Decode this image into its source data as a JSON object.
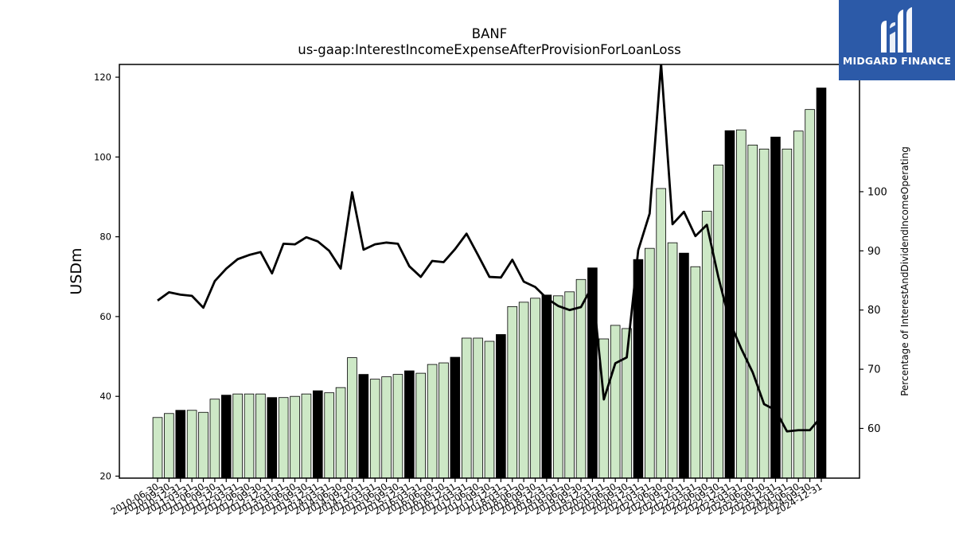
{
  "header": {
    "title": "BANF",
    "subtitle": "us-gaap:InterestIncomeExpenseAfterProvisionForLoanLoss"
  },
  "logo": {
    "text": "MIDGARD FINANCE",
    "color": "#2c5aa8"
  },
  "chart_data": {
    "type": "bar",
    "title": "BANF",
    "subtitle": "us-gaap:InterestIncomeExpenseAfterProvisionForLoanLoss",
    "ylabel": "USDm",
    "y2label": "Percentage of InterestAndDividendIncomeOperating",
    "ylim": [
      19.5,
      123.2
    ],
    "y2lim": [
      51.6,
      121.5
    ],
    "yticks": [
      20,
      40,
      60,
      80,
      100,
      120
    ],
    "y2ticks": [
      60,
      70,
      80,
      90,
      100
    ],
    "grid": false,
    "colors": {
      "bar_light": "#cde8c6",
      "bar_dark": "#000000",
      "bar_edge": "#000000",
      "line": "#000000"
    },
    "categories": [
      "2010-06-30",
      "2010-09-30",
      "2010-12-31",
      "2011-03-31",
      "2011-06-30",
      "2011-09-30",
      "2011-12-31",
      "2012-03-31",
      "2012-06-30",
      "2012-09-30",
      "2012-12-31",
      "2013-03-31",
      "2013-06-30",
      "2013-09-30",
      "2013-12-31",
      "2014-03-31",
      "2014-06-30",
      "2014-09-30",
      "2014-12-31",
      "2015-03-31",
      "2015-06-30",
      "2015-09-30",
      "2015-12-31",
      "2016-03-31",
      "2016-06-30",
      "2016-09-30",
      "2016-12-31",
      "2017-03-31",
      "2017-06-30",
      "2017-09-30",
      "2017-12-31",
      "2018-03-31",
      "2018-06-30",
      "2018-09-30",
      "2018-12-31",
      "2019-03-31",
      "2019-06-30",
      "2019-09-30",
      "2019-12-31",
      "2020-03-31",
      "2020-06-30",
      "2020-09-30",
      "2020-12-31",
      "2021-03-31",
      "2021-06-30",
      "2021-09-30",
      "2021-12-31",
      "2022-03-31",
      "2022-06-30",
      "2022-09-30",
      "2022-12-31",
      "2023-03-31",
      "2023-06-30",
      "2023-09-30",
      "2023-12-31",
      "2024-03-31",
      "2024-06-30",
      "2024-09-30",
      "2024-12-31"
    ],
    "tick_labels": [
      "2010-06-30",
      "2010-09-30",
      "2010-12-31",
      "2011-03-31",
      "2011-06-30",
      "2011-09-30",
      "2011-12-31",
      "2012-03-31",
      "2012-06-30",
      "2012-09-30",
      "2012-12-31",
      "2013-03-31",
      "2013-06-30",
      "2013-09-30",
      "2013-12-31",
      "2014-03-31",
      "2014-06-30",
      "2014-09-30",
      "2014-12-31",
      "2015-03-31",
      "2015-06-30",
      "2015-09-30",
      "2015-12-31",
      "2016-03-31",
      "2016-06-30",
      "2016-09-30",
      "2016-12-31",
      "2017-03-31",
      "2017-06-30",
      "2017-09-30",
      "2017-12-31",
      "2018-03-31",
      "2018-06-30",
      "2018-09-30",
      "2018-12-31",
      "2019-03-31",
      "2019-06-30",
      "2019-09-30",
      "2019-12-31",
      "2020-03-31",
      "2020-06-30",
      "2020-09-30",
      "2020-12-31",
      "2021-03-31",
      "2021-06-30",
      "2021-09-30",
      "2021-12-31",
      "2022-03-31",
      "2022-06-30",
      "2022-09-30",
      "2022-12-31",
      "2023-03-31",
      "2023-06-30",
      "2023-09-30",
      "2023-12-31",
      "2024-03-31",
      "2024-06-30",
      "2024-09-30",
      "2024-12-31"
    ],
    "bar_values": [
      34.7,
      35.7,
      36.5,
      36.5,
      36.0,
      39.3,
      40.3,
      40.6,
      40.6,
      40.6,
      39.7,
      39.7,
      40.0,
      40.6,
      41.4,
      40.9,
      42.2,
      49.7,
      45.5,
      44.3,
      44.9,
      45.5,
      46.4,
      45.8,
      48.0,
      48.4,
      49.8,
      54.6,
      54.6,
      53.8,
      55.5,
      62.5,
      63.6,
      64.6,
      65.4,
      65.2,
      66.2,
      69.3,
      72.2,
      54.4,
      57.8,
      57.0,
      74.3,
      77.1,
      92.1,
      78.5,
      75.9,
      72.5,
      86.4,
      98.0,
      106.6,
      106.8,
      103.0,
      102.0,
      105.0,
      102.0,
      106.5,
      111.9,
      117.3
    ],
    "bar_highlight": [
      false,
      false,
      true,
      false,
      false,
      false,
      true,
      false,
      false,
      false,
      true,
      false,
      false,
      false,
      true,
      false,
      false,
      false,
      true,
      false,
      false,
      false,
      true,
      false,
      false,
      false,
      true,
      false,
      false,
      false,
      true,
      false,
      false,
      false,
      true,
      false,
      false,
      false,
      true,
      false,
      false,
      false,
      true,
      false,
      false,
      false,
      true,
      false,
      false,
      false,
      true,
      false,
      false,
      false,
      true,
      false,
      false,
      false,
      true
    ],
    "line_values": [
      81.6,
      83.0,
      82.6,
      82.4,
      80.4,
      84.9,
      87.0,
      88.6,
      89.3,
      89.8,
      86.2,
      91.2,
      91.1,
      92.3,
      91.6,
      90.0,
      87.0,
      99.9,
      90.2,
      91.1,
      91.4,
      91.2,
      87.4,
      85.6,
      88.3,
      88.1,
      90.3,
      92.9,
      89.3,
      85.6,
      85.5,
      88.5,
      84.8,
      83.9,
      82.0,
      80.7,
      80.0,
      80.5,
      84.1,
      64.9,
      71.0,
      72.0,
      90.1,
      96.3,
      121.6,
      94.5,
      96.6,
      92.5,
      94.4,
      85.6,
      78.0,
      73.5,
      69.5,
      64.1,
      63.1,
      59.5,
      59.7,
      59.7,
      62.0
    ]
  }
}
